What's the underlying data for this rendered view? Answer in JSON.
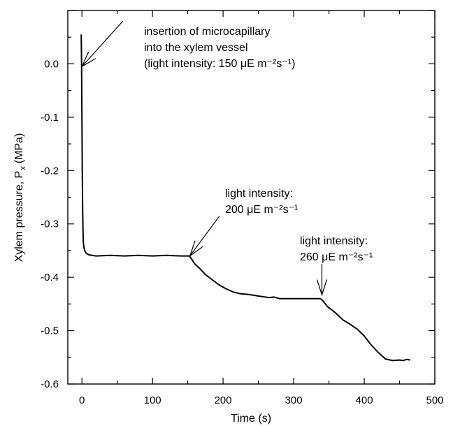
{
  "chart_data": {
    "type": "line",
    "xlabel": "Time (s)",
    "ylabel": "Xylem pressure, P",
    "ylabel_sub": "x",
    "ylabel_unit": "(MPa)",
    "xlim": [
      -20,
      500
    ],
    "ylim": [
      -0.6,
      0.1
    ],
    "xticks": [
      "0",
      "100",
      "200",
      "300",
      "400",
      "500"
    ],
    "yticks": [
      "0.0",
      "-0.1",
      "-0.2",
      "-0.3",
      "-0.4",
      "-0.5",
      "-0.6"
    ],
    "grid": false,
    "series": [
      {
        "x": [
          -1,
          -0.5,
          0,
          0.5,
          1,
          1.5,
          2,
          3,
          4,
          6,
          10,
          20,
          40,
          60,
          80,
          100,
          120,
          140,
          152,
          155,
          160,
          168,
          175,
          185,
          195,
          205,
          215,
          225,
          235,
          245,
          255,
          265,
          272,
          280,
          300,
          320,
          338,
          342,
          348,
          355,
          362,
          370,
          380,
          390,
          400,
          410,
          420,
          430,
          440,
          450,
          455,
          460,
          465
        ],
        "y": [
          0.055,
          0.0,
          -0.1,
          -0.2,
          -0.27,
          -0.31,
          -0.335,
          -0.345,
          -0.35,
          -0.355,
          -0.358,
          -0.36,
          -0.359,
          -0.36,
          -0.359,
          -0.36,
          -0.359,
          -0.36,
          -0.36,
          -0.365,
          -0.375,
          -0.385,
          -0.395,
          -0.405,
          -0.415,
          -0.422,
          -0.428,
          -0.431,
          -0.432,
          -0.434,
          -0.436,
          -0.438,
          -0.437,
          -0.44,
          -0.44,
          -0.44,
          -0.44,
          -0.445,
          -0.455,
          -0.462,
          -0.47,
          -0.48,
          -0.488,
          -0.497,
          -0.51,
          -0.527,
          -0.541,
          -0.553,
          -0.556,
          -0.555,
          -0.556,
          -0.554,
          -0.555
        ]
      }
    ],
    "annotations": [
      {
        "lines": [
          "insertion of microcapillary",
          "into the xylem vessel",
          "(light intensity: 150 μE m⁻²s⁻¹)"
        ],
        "target_x": 0,
        "target_y": -0.005,
        "tail_x": 58,
        "tail_y": 0.08
      },
      {
        "lines": [
          "light intensity:",
          "200 μE m⁻²s⁻¹"
        ],
        "target_x": 153,
        "target_y": -0.36,
        "tail_x": 195,
        "tail_y": -0.285
      },
      {
        "lines": [
          "light intensity:",
          "260 μE m⁻²s⁻¹"
        ],
        "target_x": 340,
        "target_y": -0.433,
        "tail_x": 340,
        "tail_y": -0.375
      }
    ]
  }
}
